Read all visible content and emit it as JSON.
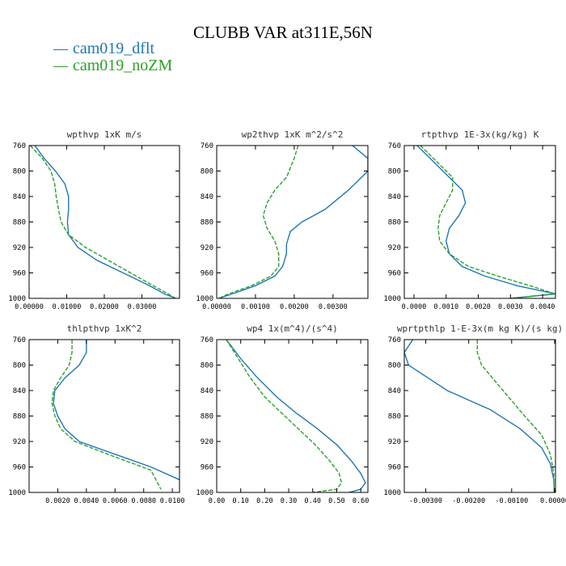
{
  "title": "CLUBB VAR at311E,56N",
  "legend": [
    {
      "name": "cam019_dflt",
      "color": "#1f77b4"
    },
    {
      "name": "cam019_noZM",
      "color": "#2ca02c"
    }
  ],
  "chart_data": [
    {
      "type": "line",
      "title": "wpthvp  1xK m/s",
      "xlim": [
        0,
        0.04
      ],
      "ylim": [
        760,
        1000
      ],
      "xticks": [
        0,
        0.01,
        0.02,
        0.03
      ],
      "xtick_labels": [
        "0.00000",
        "0.01000",
        "0.02000",
        "0.03000"
      ],
      "yticks": [
        760,
        800,
        840,
        880,
        920,
        960,
        1000
      ],
      "ytick_labels": [
        "760",
        "800",
        "840",
        "880",
        "920",
        "960",
        "1000"
      ],
      "series": [
        {
          "name": "cam019_dflt",
          "color": "#1f77b4",
          "dash": "",
          "x": [
            0.0015,
            0.004,
            0.007,
            0.0095,
            0.0105,
            0.0105,
            0.0102,
            0.0105,
            0.013,
            0.018,
            0.025,
            0.032,
            0.036,
            0.039
          ],
          "y": [
            760,
            780,
            800,
            820,
            840,
            860,
            880,
            900,
            920,
            940,
            960,
            980,
            993,
            1000
          ]
        },
        {
          "name": "cam019_noZM",
          "color": "#2ca02c",
          "dash": "5,2",
          "x": [
            0.0003,
            0.0035,
            0.0058,
            0.0068,
            0.0072,
            0.0078,
            0.0085,
            0.0105,
            0.015,
            0.021,
            0.027,
            0.033,
            0.037,
            0.039
          ],
          "y": [
            760,
            780,
            800,
            820,
            840,
            860,
            880,
            900,
            920,
            940,
            960,
            980,
            993,
            1000
          ]
        }
      ]
    },
    {
      "type": "line",
      "title": "wp2thvp  1xK m^2/s^2",
      "xlim": [
        0,
        0.0039
      ],
      "ylim": [
        760,
        1000
      ],
      "xticks": [
        0,
        0.001,
        0.002,
        0.003
      ],
      "xtick_labels": [
        "0.00000",
        "0.00100",
        "0.00200",
        "0.00300"
      ],
      "yticks": [
        760,
        800,
        840,
        880,
        920,
        960,
        1000
      ],
      "ytick_labels": [
        "760",
        "800",
        "840",
        "880",
        "920",
        "960",
        "1000"
      ],
      "series": [
        {
          "name": "cam019_dflt",
          "color": "#1f77b4",
          "dash": "",
          "x": [
            0.0035,
            0.0039,
            0.0039,
            0.0034,
            0.0028,
            0.0022,
            0.0019,
            0.0018,
            0.0018,
            0.0017,
            0.0015,
            0.001,
            0.0004,
            5e-05
          ],
          "y": [
            760,
            780,
            800,
            830,
            860,
            880,
            895,
            915,
            930,
            950,
            965,
            980,
            993,
            1000
          ]
        },
        {
          "name": "cam019_noZM",
          "color": "#2ca02c",
          "dash": "5,2",
          "x": [
            0.0021,
            0.002,
            0.0018,
            0.0015,
            0.0013,
            0.0012,
            0.0013,
            0.0015,
            0.0016,
            0.0016,
            0.0014,
            0.0009,
            0.0003,
            5e-05
          ],
          "y": [
            760,
            780,
            810,
            830,
            850,
            870,
            890,
            910,
            930,
            950,
            965,
            980,
            993,
            1000
          ]
        }
      ]
    },
    {
      "type": "line",
      "title": "rtpthvp  1E-3x(kg/kg) K",
      "xlim": [
        -0.0003,
        0.0044
      ],
      "ylim": [
        760,
        1000
      ],
      "xticks": [
        0,
        0.001,
        0.002,
        0.003,
        0.004
      ],
      "xtick_labels": [
        "0.0000",
        "0.0010",
        "0.0020",
        "0.0030",
        "0.0040"
      ],
      "yticks": [
        760,
        800,
        840,
        880,
        920,
        960,
        1000
      ],
      "ytick_labels": [
        "760",
        "800",
        "840",
        "880",
        "920",
        "960",
        "1000"
      ],
      "series": [
        {
          "name": "cam019_dflt",
          "color": "#1f77b4",
          "dash": "",
          "x": [
            0.0001,
            0.0005,
            0.0011,
            0.0015,
            0.0016,
            0.0014,
            0.0011,
            0.001,
            0.0011,
            0.0015,
            0.0022,
            0.0032,
            0.0044,
            0.003
          ],
          "y": [
            760,
            780,
            810,
            830,
            850,
            870,
            890,
            910,
            930,
            950,
            965,
            980,
            993,
            1000
          ]
        },
        {
          "name": "cam019_noZM",
          "color": "#2ca02c",
          "dash": "5,2",
          "x": [
            0.0002,
            0.0008,
            0.0012,
            0.0012,
            0.001,
            0.0008,
            0.00075,
            0.0008,
            0.0011,
            0.0017,
            0.0026,
            0.0036,
            0.0044,
            0.003
          ],
          "y": [
            760,
            790,
            810,
            830,
            850,
            870,
            890,
            910,
            930,
            950,
            965,
            980,
            993,
            1000
          ]
        }
      ]
    },
    {
      "type": "line",
      "title": "thlpthvp  1xK^2",
      "xlim": [
        0,
        0.0105
      ],
      "ylim": [
        760,
        1000
      ],
      "xticks": [
        0.002,
        0.004,
        0.006,
        0.008,
        0.01
      ],
      "xtick_labels": [
        "0.0020",
        "0.0040",
        "0.0060",
        "0.0080",
        "0.0100"
      ],
      "yticks": [
        760,
        800,
        840,
        880,
        920,
        960,
        1000
      ],
      "ytick_labels": [
        "760",
        "800",
        "840",
        "880",
        "920",
        "960",
        "1000"
      ],
      "series": [
        {
          "name": "cam019_dflt",
          "color": "#1f77b4",
          "dash": "",
          "x": [
            0.004,
            0.004,
            0.0035,
            0.0025,
            0.0018,
            0.0017,
            0.002,
            0.0025,
            0.0035,
            0.006,
            0.0085,
            0.0105
          ],
          "y": [
            760,
            780,
            800,
            820,
            840,
            860,
            880,
            900,
            920,
            940,
            960,
            980
          ]
        },
        {
          "name": "cam019_noZM",
          "color": "#2ca02c",
          "dash": "5,2",
          "x": [
            0.003,
            0.003,
            0.0028,
            0.0022,
            0.0017,
            0.0016,
            0.0018,
            0.0022,
            0.0032,
            0.0055,
            0.0085,
            0.0092
          ],
          "y": [
            760,
            780,
            800,
            820,
            840,
            860,
            880,
            900,
            920,
            940,
            965,
            995
          ]
        }
      ]
    },
    {
      "type": "line",
      "title": "wp4  1x(m^4)/(s^4)",
      "xlim": [
        0,
        0.63
      ],
      "ylim": [
        760,
        1000
      ],
      "xticks": [
        0,
        0.1,
        0.2,
        0.3,
        0.4,
        0.5,
        0.6
      ],
      "xtick_labels": [
        "0.00",
        "0.10",
        "0.20",
        "0.30",
        "0.40",
        "0.50",
        "0.60"
      ],
      "yticks": [
        760,
        800,
        840,
        880,
        920,
        960,
        1000
      ],
      "ytick_labels": [
        "760",
        "800",
        "840",
        "880",
        "920",
        "960",
        "1000"
      ],
      "series": [
        {
          "name": "cam019_dflt",
          "color": "#1f77b4",
          "dash": "",
          "x": [
            0.04,
            0.1,
            0.17,
            0.25,
            0.33,
            0.42,
            0.5,
            0.56,
            0.6,
            0.62,
            0.6,
            0.55
          ],
          "y": [
            760,
            790,
            820,
            850,
            875,
            900,
            925,
            950,
            970,
            985,
            995,
            1000
          ]
        },
        {
          "name": "cam019_noZM",
          "color": "#2ca02c",
          "dash": "5,2",
          "x": [
            0.04,
            0.09,
            0.14,
            0.2,
            0.27,
            0.34,
            0.41,
            0.47,
            0.51,
            0.52,
            0.5,
            0.4
          ],
          "y": [
            760,
            790,
            820,
            850,
            875,
            900,
            925,
            950,
            970,
            985,
            995,
            1000
          ]
        }
      ]
    },
    {
      "type": "line",
      "title": "wprtpthlp  1-E-3x(m kg K)/(s kg)",
      "xlim": [
        -0.0035,
        2e-05
      ],
      "ylim": [
        760,
        1000
      ],
      "xticks": [
        -0.003,
        -0.002,
        -0.001,
        0
      ],
      "xtick_labels": [
        "-0.00300",
        "-0.00200",
        "-0.00100",
        "0.00000"
      ],
      "yticks": [
        760,
        800,
        840,
        880,
        920,
        960,
        1000
      ],
      "ytick_labels": [
        "760",
        "800",
        "840",
        "880",
        "920",
        "960",
        "1000"
      ],
      "series": [
        {
          "name": "cam019_dflt",
          "color": "#1f77b4",
          "dash": "",
          "x": [
            -0.0033,
            -0.0035,
            -0.0034,
            -0.0025,
            -0.0015,
            -0.0008,
            -0.0003,
            -0.0001,
            -2e-05,
            -1e-05
          ],
          "y": [
            760,
            780,
            800,
            840,
            870,
            900,
            930,
            955,
            980,
            1000
          ]
        },
        {
          "name": "cam019_noZM",
          "color": "#2ca02c",
          "dash": "5,2",
          "x": [
            -0.0018,
            -0.0018,
            -0.0017,
            -0.0012,
            -0.0007,
            -0.0003,
            -0.0001,
            -2e-05,
            -1e-05
          ],
          "y": [
            760,
            780,
            800,
            840,
            880,
            910,
            940,
            970,
            1000
          ]
        }
      ]
    }
  ]
}
